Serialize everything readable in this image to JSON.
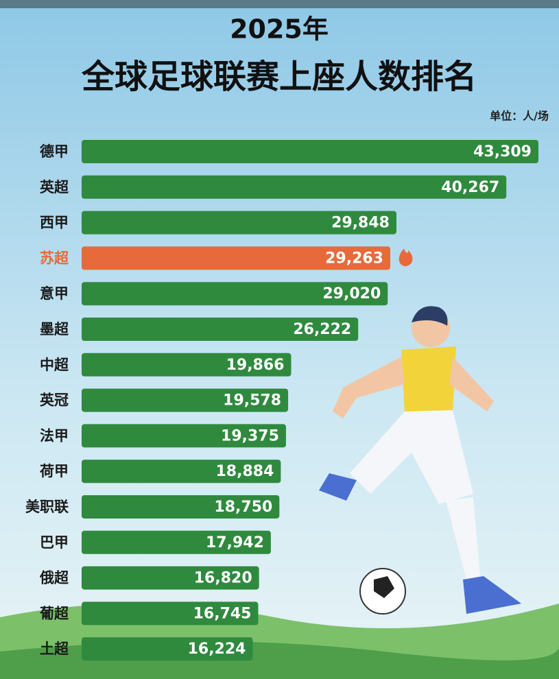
{
  "chart_data": {
    "type": "hbar",
    "title": "2025年",
    "subtitle": "全球足球联赛上座人数排名",
    "unit_label": "单位：人/场",
    "categories": [
      "德甲",
      "英超",
      "西甲",
      "苏超",
      "意甲",
      "墨超",
      "中超",
      "英冠",
      "法甲",
      "荷甲",
      "美职联",
      "巴甲",
      "俄超",
      "葡超",
      "土超"
    ],
    "values": [
      43309,
      40267,
      29848,
      29263,
      29020,
      26222,
      19866,
      19578,
      19375,
      18884,
      18750,
      17942,
      16820,
      16745,
      16224
    ],
    "value_labels": [
      "43,309",
      "40,267",
      "29,848",
      "29,263",
      "29,020",
      "26,222",
      "19,866",
      "19,578",
      "19,375",
      "18,884",
      "18,750",
      "17,942",
      "16,820",
      "16,745",
      "16,224"
    ],
    "color": "#2f8a3e",
    "colors": [
      "#2f8a3e",
      "#2f8a3e",
      "#2f8a3e",
      "#e8693a",
      "#2f8a3e",
      "#2f8a3e",
      "#2f8a3e",
      "#2f8a3e",
      "#2f8a3e",
      "#2f8a3e",
      "#2f8a3e",
      "#2f8a3e",
      "#2f8a3e",
      "#2f8a3e",
      "#2f8a3e"
    ]
  }
}
